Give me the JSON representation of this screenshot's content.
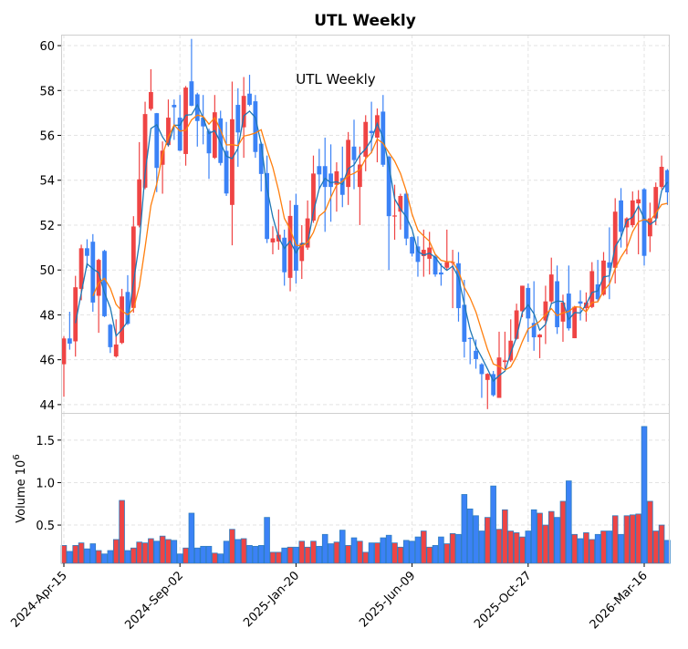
{
  "chart_data": {
    "type": "candlestick",
    "title": "UTL  Weekly",
    "inner_title": "UTL  Weekly",
    "colors": {
      "up": "#ef4444",
      "down": "#3b82f6",
      "ma_short": "#1f77b4",
      "ma_long": "#ff7f0e",
      "volume_edge": "#2f7dbf"
    },
    "moving_averages": [
      {
        "period": 3,
        "color_key": "ma_short"
      },
      {
        "period": 6,
        "color_key": "ma_long"
      }
    ],
    "price_axis": {
      "ylim": [
        43.63,
        60.49
      ],
      "ticks": [
        "44",
        "46",
        "48",
        "50",
        "52",
        "54",
        "56",
        "58",
        "60"
      ],
      "grid": true
    },
    "volume_axis": {
      "ylabel": "Volume",
      "multiplier_base": "10",
      "multiplier_exp": "6",
      "ylim": [
        0.05,
        1.82
      ],
      "ticks": [
        "0.5",
        "1.0",
        "1.5"
      ],
      "grid": true
    },
    "x_axis": {
      "xlim": [
        -0.47,
        104.4
      ],
      "ticks": [
        {
          "index": 0,
          "label": "2024-Apr-15"
        },
        {
          "index": 20,
          "label": "2024-Sep-02"
        },
        {
          "index": 40,
          "label": "2025-Jan-20"
        },
        {
          "index": 60,
          "label": "2025-Jun-09"
        },
        {
          "index": 80,
          "label": "2025-Oct-27"
        },
        {
          "index": 100,
          "label": "2026-Mar-16"
        }
      ]
    },
    "ohlc": [
      [
        45.8,
        47.05,
        44.35,
        46.95
      ],
      [
        46.95,
        48.14,
        46.45,
        46.72
      ],
      [
        46.82,
        49.74,
        46.14,
        49.23
      ],
      [
        49.16,
        51.13,
        48.65,
        50.97
      ],
      [
        50.97,
        51.37,
        50.1,
        50.63
      ],
      [
        51.26,
        51.6,
        48.14,
        48.55
      ],
      [
        48.85,
        50.5,
        47.2,
        50.45
      ],
      [
        50.85,
        50.9,
        47.9,
        47.94
      ],
      [
        47.56,
        47.6,
        46.3,
        46.56
      ],
      [
        46.15,
        47.8,
        46.1,
        46.68
      ],
      [
        46.75,
        49.16,
        46.7,
        48.82
      ],
      [
        49.02,
        49.77,
        47.55,
        47.6
      ],
      [
        48.31,
        52.4,
        48.1,
        51.94
      ],
      [
        51.98,
        55.7,
        51.9,
        54.04
      ],
      [
        53.67,
        57.5,
        53.6,
        56.95
      ],
      [
        57.18,
        58.95,
        57.1,
        57.93
      ],
      [
        56.99,
        57.0,
        53.47,
        54.55
      ],
      [
        54.69,
        55.73,
        53.4,
        55.32
      ],
      [
        55.57,
        57.6,
        55.5,
        56.79
      ],
      [
        57.36,
        57.6,
        55.8,
        57.25
      ],
      [
        56.79,
        57.8,
        55.3,
        55.32
      ],
      [
        55.17,
        58.2,
        54.65,
        58.13
      ],
      [
        58.41,
        60.3,
        57.3,
        57.32
      ],
      [
        57.83,
        57.9,
        55.5,
        56.64
      ],
      [
        56.79,
        57.8,
        55.6,
        56.4
      ],
      [
        56.2,
        56.3,
        54.06,
        55.2
      ],
      [
        55.0,
        57.8,
        54.95,
        57.03
      ],
      [
        56.76,
        57.1,
        54.66,
        54.77
      ],
      [
        55.31,
        56.6,
        53.3,
        53.41
      ],
      [
        52.9,
        58.4,
        51.1,
        56.72
      ],
      [
        57.36,
        58.1,
        54.6,
        56.13
      ],
      [
        56.36,
        58.6,
        55.0,
        57.76
      ],
      [
        57.86,
        58.7,
        57.3,
        57.36
      ],
      [
        57.52,
        57.8,
        55.0,
        55.26
      ],
      [
        55.63,
        55.7,
        53.5,
        54.28
      ],
      [
        54.32,
        55.1,
        51.2,
        51.38
      ],
      [
        51.23,
        51.95,
        50.7,
        51.41
      ],
      [
        51.27,
        52.7,
        50.9,
        51.57
      ],
      [
        51.44,
        51.8,
        49.3,
        49.9
      ],
      [
        49.65,
        53.1,
        49.05,
        52.41
      ],
      [
        52.9,
        53.4,
        49.4,
        49.97
      ],
      [
        50.4,
        52.0,
        49.6,
        51.2
      ],
      [
        51.0,
        53.1,
        50.9,
        52.3
      ],
      [
        52.2,
        55.1,
        52.1,
        54.3
      ],
      [
        54.63,
        55.4,
        53.6,
        54.26
      ],
      [
        54.63,
        55.9,
        51.7,
        53.7
      ],
      [
        54.3,
        55.6,
        52.15,
        53.7
      ],
      [
        53.8,
        54.8,
        52.6,
        54.4
      ],
      [
        54.1,
        55.5,
        52.8,
        53.35
      ],
      [
        53.7,
        56.15,
        52.9,
        55.8
      ],
      [
        55.5,
        56.7,
        53.6,
        54.9
      ],
      [
        53.7,
        55.5,
        52.0,
        54.7
      ],
      [
        55.05,
        56.9,
        54.4,
        56.6
      ],
      [
        56.2,
        57.5,
        55.2,
        56.1
      ],
      [
        55.9,
        57.2,
        54.8,
        56.9
      ],
      [
        57.06,
        57.8,
        54.6,
        54.69
      ],
      [
        55.05,
        55.1,
        50.0,
        52.4
      ],
      [
        52.41,
        53.8,
        51.35,
        52.43
      ],
      [
        52.6,
        53.4,
        51.8,
        53.3
      ],
      [
        53.4,
        53.5,
        51.1,
        51.4
      ],
      [
        51.47,
        51.5,
        50.6,
        50.73
      ],
      [
        51.05,
        51.5,
        49.7,
        50.36
      ],
      [
        50.62,
        51.8,
        49.7,
        50.9
      ],
      [
        50.5,
        51.7,
        49.8,
        51.0
      ],
      [
        50.6,
        50.7,
        49.7,
        49.8
      ],
      [
        49.89,
        50.3,
        49.3,
        49.8
      ],
      [
        50.1,
        51.8,
        50.0,
        50.35
      ],
      [
        50.31,
        50.9,
        48.3,
        50.36
      ],
      [
        50.3,
        50.8,
        47.7,
        48.3
      ],
      [
        48.45,
        49.56,
        46.1,
        46.8
      ],
      [
        46.97,
        47.0,
        45.8,
        46.92
      ],
      [
        46.4,
        46.9,
        45.6,
        46.03
      ],
      [
        45.8,
        45.85,
        44.3,
        45.36
      ],
      [
        45.1,
        45.4,
        43.8,
        45.37
      ],
      [
        45.36,
        45.5,
        44.36,
        44.42
      ],
      [
        44.3,
        47.25,
        44.3,
        46.1
      ],
      [
        45.9,
        47.25,
        45.6,
        45.97
      ],
      [
        45.97,
        47.8,
        45.9,
        46.85
      ],
      [
        46.93,
        48.5,
        46.9,
        48.2
      ],
      [
        48.16,
        49.3,
        47.9,
        49.3
      ],
      [
        49.2,
        49.4,
        46.8,
        47.84
      ],
      [
        47.64,
        49.5,
        46.4,
        47.0
      ],
      [
        47.0,
        47.15,
        46.07,
        47.12
      ],
      [
        47.75,
        49.3,
        46.7,
        48.6
      ],
      [
        48.6,
        50.55,
        48.5,
        49.8
      ],
      [
        49.5,
        50.2,
        47.15,
        47.45
      ],
      [
        47.7,
        48.9,
        46.8,
        48.55
      ],
      [
        48.95,
        50.2,
        47.3,
        47.4
      ],
      [
        46.96,
        48.4,
        46.96,
        48.36
      ],
      [
        48.6,
        49.1,
        47.75,
        48.5
      ],
      [
        48.3,
        49.0,
        47.7,
        48.55
      ],
      [
        48.35,
        50.35,
        48.3,
        49.95
      ],
      [
        49.36,
        50.45,
        48.6,
        48.7
      ],
      [
        48.9,
        50.8,
        48.85,
        50.42
      ],
      [
        50.34,
        51.9,
        48.7,
        50.1
      ],
      [
        50.1,
        53.2,
        49.4,
        52.6
      ],
      [
        53.1,
        53.65,
        51.0,
        51.7
      ],
      [
        51.9,
        52.35,
        50.7,
        52.3
      ],
      [
        52.0,
        53.5,
        51.9,
        53.1
      ],
      [
        52.97,
        53.56,
        50.7,
        53.15
      ],
      [
        53.6,
        53.65,
        50.2,
        50.63
      ],
      [
        51.5,
        53.0,
        50.8,
        52.3
      ],
      [
        52.3,
        53.9,
        52.0,
        53.7
      ],
      [
        53.7,
        55.1,
        53.6,
        54.6
      ],
      [
        54.45,
        54.5,
        52.9,
        53.46
      ]
    ],
    "volume_millions": [
      0.26,
      0.19,
      0.26,
      0.29,
      0.22,
      0.28,
      0.2,
      0.16,
      0.2,
      0.33,
      0.79,
      0.2,
      0.23,
      0.3,
      0.29,
      0.34,
      0.31,
      0.37,
      0.33,
      0.32,
      0.16,
      0.23,
      0.64,
      0.23,
      0.25,
      0.25,
      0.17,
      0.16,
      0.31,
      0.45,
      0.33,
      0.34,
      0.26,
      0.25,
      0.26,
      0.59,
      0.18,
      0.18,
      0.23,
      0.24,
      0.24,
      0.31,
      0.24,
      0.31,
      0.25,
      0.39,
      0.28,
      0.3,
      0.44,
      0.26,
      0.35,
      0.31,
      0.18,
      0.29,
      0.29,
      0.35,
      0.38,
      0.29,
      0.24,
      0.32,
      0.31,
      0.36,
      0.43,
      0.24,
      0.26,
      0.36,
      0.28,
      0.4,
      0.39,
      0.86,
      0.69,
      0.61,
      0.43,
      0.59,
      0.96,
      0.45,
      0.68,
      0.43,
      0.41,
      0.36,
      0.43,
      0.68,
      0.64,
      0.5,
      0.66,
      0.59,
      0.78,
      1.02,
      0.39,
      0.34,
      0.41,
      0.33,
      0.39,
      0.43,
      0.43,
      0.61,
      0.39,
      0.61,
      0.62,
      0.63,
      1.66,
      0.78,
      0.43,
      0.5,
      0.32
    ]
  }
}
